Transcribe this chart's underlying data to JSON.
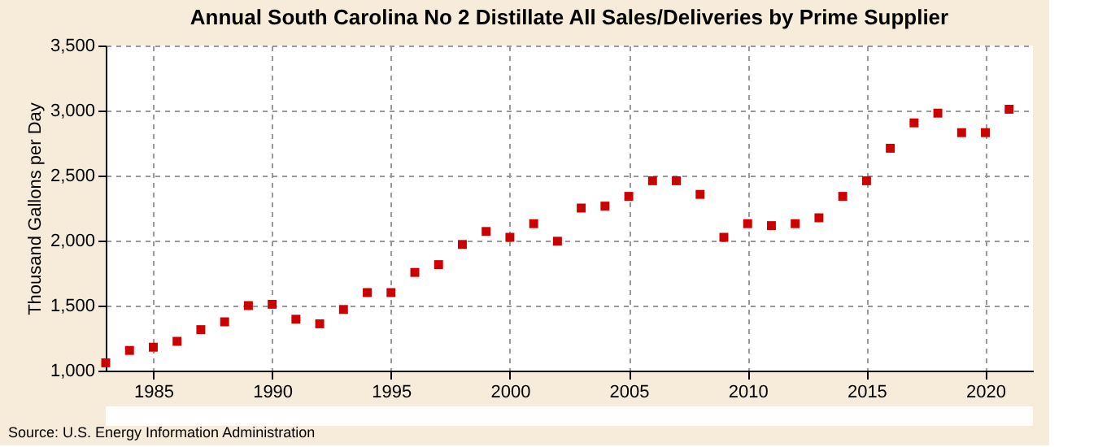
{
  "chart_data": {
    "type": "scatter",
    "title": "Annual South Carolina No 2 Distillate All Sales/Deliveries by Prime Supplier",
    "ylabel": "Thousand Gallons per Day",
    "x": [
      1983,
      1984,
      1985,
      1986,
      1987,
      1988,
      1989,
      1990,
      1991,
      1992,
      1993,
      1994,
      1995,
      1996,
      1997,
      1998,
      1999,
      2000,
      2001,
      2002,
      2003,
      2004,
      2005,
      2006,
      2007,
      2008,
      2009,
      2010,
      2011,
      2012,
      2013,
      2014,
      2015,
      2016,
      2017,
      2018,
      2019,
      2020,
      2021
    ],
    "series": [
      {
        "color": "#cc0000",
        "values": [
          1060,
          1155,
          1180,
          1225,
          1315,
          1375,
          1500,
          1510,
          1395,
          1360,
          1470,
          1600,
          1600,
          1755,
          1815,
          1970,
          2070,
          2025,
          2130,
          1995,
          2250,
          2265,
          2340,
          2460,
          2460,
          2355,
          2025,
          2130,
          2115,
          2130,
          2175,
          2340,
          2460,
          2710,
          2905,
          2980,
          2830,
          2830,
          3010
        ]
      }
    ],
    "xlim": [
      1983,
      2022
    ],
    "xticks": [
      1985,
      1990,
      1995,
      2000,
      2005,
      2010,
      2015,
      2020
    ],
    "ylim": [
      1000,
      3500
    ],
    "yticks": [
      {
        "value": 1000,
        "label": "1,000"
      },
      {
        "value": 1500,
        "label": "1,500"
      },
      {
        "value": 2000,
        "label": "2,000"
      },
      {
        "value": 2500,
        "label": "2,500"
      },
      {
        "value": 3000,
        "label": "3,000"
      },
      {
        "value": 3500,
        "label": "3,500"
      }
    ],
    "grid": true,
    "marker": "square",
    "legend": false,
    "annotations": [
      "Source: U.S. Energy Information Administration"
    ]
  }
}
